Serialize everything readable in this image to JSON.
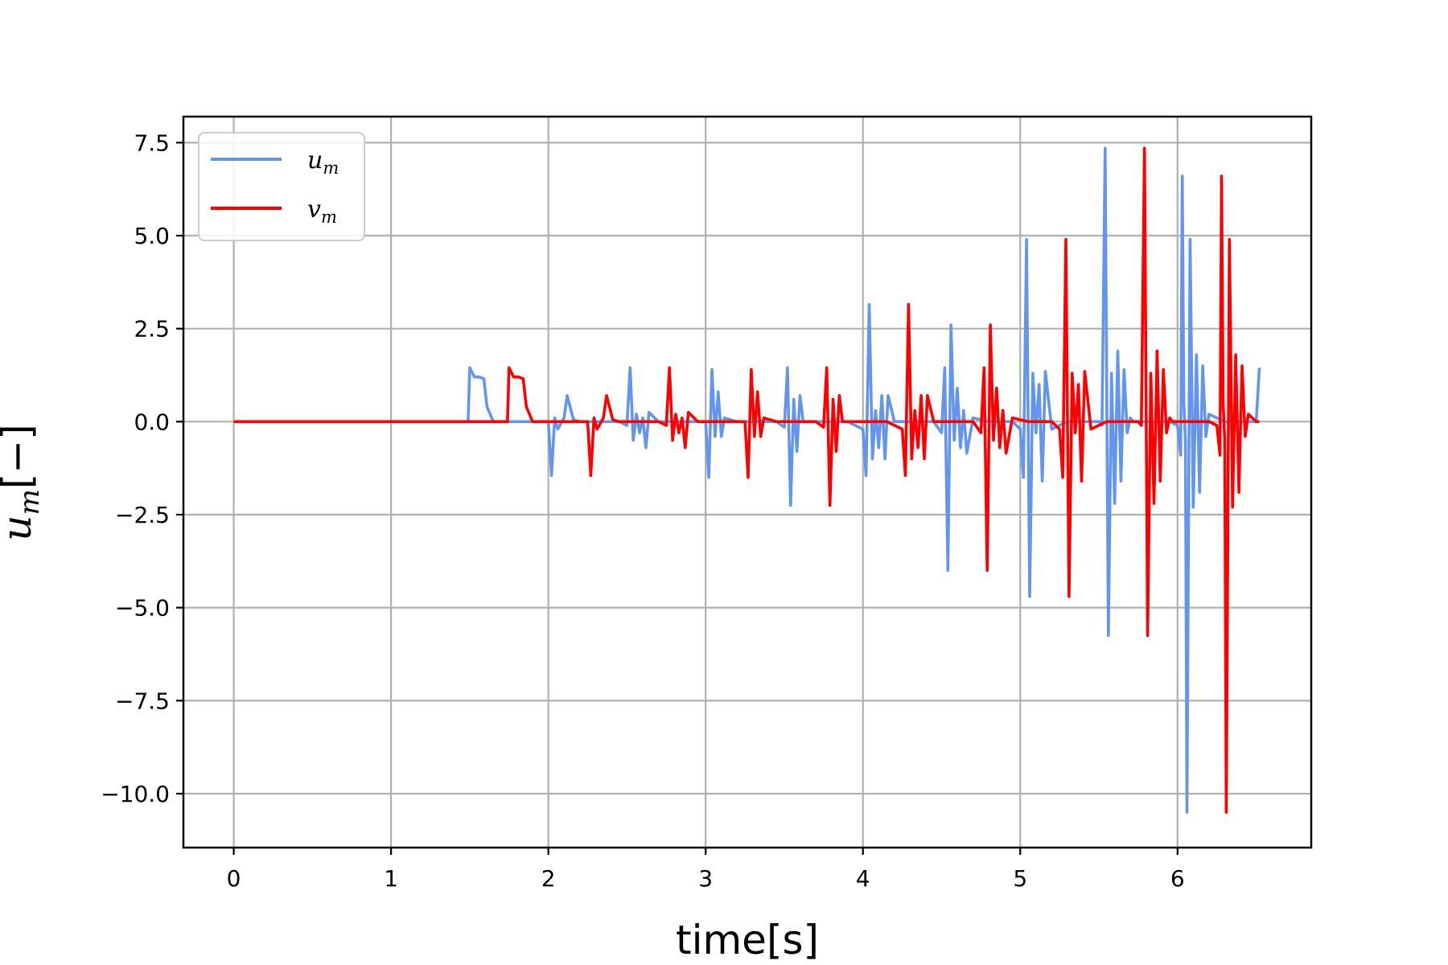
{
  "chart_data": {
    "type": "line",
    "xlabel": "time[s]",
    "ylabel": "u",
    "ylabel_subscript": "m",
    "ylabel_suffix": "[−]",
    "xlim": [
      -0.32,
      6.85
    ],
    "ylim": [
      -11.45,
      8.2
    ],
    "xticks": [
      0,
      1,
      2,
      3,
      4,
      5,
      6
    ],
    "xtick_labels": [
      "0",
      "1",
      "2",
      "3",
      "4",
      "5",
      "6"
    ],
    "yticks": [
      7.5,
      5.0,
      2.5,
      0.0,
      -2.5,
      -5.0,
      -7.5,
      -10.0
    ],
    "ytick_labels": [
      "7.5",
      "5.0",
      "2.5",
      "0.0",
      "−2.5",
      "−5.0",
      "−7.5",
      "−10.0"
    ],
    "grid": true,
    "legend_position": "upper-left",
    "series": [
      {
        "name": "u",
        "name_subscript": "m",
        "color": "#6495ed",
        "x": [
          0,
          1.49,
          1.5,
          1.53,
          1.56,
          1.59,
          1.61,
          1.65,
          1.7,
          1.8,
          2.0,
          2.02,
          2.04,
          2.06,
          2.1,
          2.12,
          2.16,
          2.2,
          2.3,
          2.45,
          2.5,
          2.52,
          2.54,
          2.56,
          2.58,
          2.6,
          2.62,
          2.64,
          2.7,
          2.75,
          2.8,
          2.84,
          2.9,
          2.98,
          3.0,
          3.02,
          3.04,
          3.06,
          3.08,
          3.1,
          3.12,
          3.2,
          3.3,
          3.45,
          3.5,
          3.52,
          3.54,
          3.56,
          3.58,
          3.6,
          3.62,
          3.7,
          3.8,
          3.9,
          4.0,
          4.02,
          4.04,
          4.06,
          4.08,
          4.1,
          4.12,
          4.14,
          4.16,
          4.2,
          4.3,
          4.45,
          4.5,
          4.52,
          4.54,
          4.56,
          4.58,
          4.6,
          4.62,
          4.64,
          4.66,
          4.7,
          4.8,
          4.95,
          5.0,
          5.02,
          5.04,
          5.06,
          5.08,
          5.1,
          5.12,
          5.14,
          5.16,
          5.2,
          5.3,
          5.45,
          5.5,
          5.52,
          5.54,
          5.56,
          5.58,
          5.6,
          5.62,
          5.64,
          5.66,
          5.68,
          5.7,
          5.72,
          5.8,
          5.95,
          6.0,
          6.02,
          6.03,
          6.04,
          6.05,
          6.06,
          6.08,
          6.1,
          6.12,
          6.14,
          6.16,
          6.18,
          6.2,
          6.3,
          6.4,
          6.45,
          6.5,
          6.52
        ],
        "y": [
          0,
          0,
          1.45,
          1.2,
          1.2,
          1.15,
          0.4,
          0,
          0,
          0,
          0,
          -1.45,
          0.1,
          -0.2,
          0.1,
          0.7,
          0.05,
          0,
          0,
          0,
          -0.1,
          1.45,
          -0.5,
          0.2,
          -0.3,
          0.1,
          -0.7,
          0.25,
          0,
          0,
          0,
          0,
          0,
          0,
          0,
          -1.5,
          1.4,
          -0.4,
          0.8,
          -0.4,
          0.1,
          0,
          0,
          0,
          -0.15,
          1.45,
          -2.25,
          0.6,
          -0.8,
          0.7,
          0,
          0,
          0,
          0,
          -0.2,
          -1.45,
          3.15,
          -1.0,
          0.3,
          -0.7,
          0.7,
          -1.0,
          0.7,
          0,
          0,
          0,
          -0.3,
          1.45,
          -4.0,
          2.6,
          -0.5,
          0.9,
          -0.7,
          0.3,
          -0.85,
          0.1,
          0,
          0,
          -0.2,
          -1.5,
          4.9,
          -4.7,
          1.3,
          -0.3,
          1.0,
          -1.6,
          1.35,
          -0.2,
          0,
          0,
          0,
          -0.1,
          7.35,
          -5.75,
          1.3,
          -2.2,
          1.9,
          -1.6,
          1.4,
          -0.3,
          0.1,
          0,
          0,
          0,
          -0.1,
          -0.9,
          6.6,
          0.5,
          -0.5,
          -10.5,
          4.9,
          -2.3,
          1.8,
          -1.9,
          1.5,
          -0.4,
          0.2,
          0,
          0,
          0,
          0,
          1.45
        ],
        "visible_peaks_note": ""
      },
      {
        "name": "v",
        "name_subscript": "m",
        "color": "#ff0000",
        "x": [
          0,
          1.74,
          1.75,
          1.78,
          1.81,
          1.84,
          1.86,
          1.9,
          1.95,
          2.05,
          2.25,
          2.27,
          2.29,
          2.31,
          2.35,
          2.37,
          2.41,
          2.45,
          2.55,
          2.7,
          2.75,
          2.77,
          2.79,
          2.81,
          2.83,
          2.85,
          2.87,
          2.89,
          2.95,
          3.0,
          3.05,
          3.09,
          3.15,
          3.23,
          3.25,
          3.27,
          3.29,
          3.31,
          3.33,
          3.35,
          3.37,
          3.45,
          3.55,
          3.7,
          3.75,
          3.77,
          3.79,
          3.81,
          3.83,
          3.85,
          3.87,
          3.95,
          4.05,
          4.15,
          4.25,
          4.27,
          4.29,
          4.31,
          4.33,
          4.35,
          4.37,
          4.39,
          4.41,
          4.45,
          4.55,
          4.7,
          4.75,
          4.77,
          4.79,
          4.81,
          4.83,
          4.85,
          4.87,
          4.89,
          4.91,
          4.95,
          5.05,
          5.2,
          5.25,
          5.27,
          5.29,
          5.31,
          5.33,
          5.35,
          5.37,
          5.39,
          5.41,
          5.45,
          5.55,
          5.7,
          5.75,
          5.77,
          5.79,
          5.81,
          5.83,
          5.85,
          5.87,
          5.89,
          5.91,
          5.93,
          5.95,
          5.97,
          6.05,
          6.2,
          6.25,
          6.27,
          6.28,
          6.29,
          6.3,
          6.31,
          6.33,
          6.35,
          6.37,
          6.39,
          6.41,
          6.43,
          6.45,
          6.5,
          6.52
        ],
        "y": [
          0,
          0,
          1.45,
          1.2,
          1.2,
          1.15,
          0.4,
          0,
          0,
          0,
          0,
          -1.45,
          0.1,
          -0.2,
          0.1,
          0.7,
          0.05,
          0,
          0,
          0,
          -0.1,
          1.45,
          -0.5,
          0.2,
          -0.3,
          0.1,
          -0.7,
          0.25,
          0,
          0,
          0,
          0,
          0,
          0,
          0,
          -1.5,
          1.4,
          -0.4,
          0.8,
          -0.4,
          0.1,
          0,
          0,
          0,
          -0.15,
          1.45,
          -2.25,
          0.6,
          -0.8,
          0.7,
          0,
          0,
          0,
          0,
          -0.2,
          -1.45,
          3.15,
          -1.0,
          0.3,
          -0.7,
          0.7,
          -1.0,
          0.7,
          0,
          0,
          0,
          -0.3,
          1.45,
          -4.0,
          2.6,
          -0.5,
          0.9,
          -0.7,
          0.3,
          -0.85,
          0.1,
          0,
          0,
          -0.2,
          -1.5,
          4.9,
          -4.7,
          1.3,
          -0.3,
          1.0,
          -1.6,
          1.35,
          -0.2,
          0,
          0,
          0,
          -0.1,
          7.35,
          -5.75,
          1.3,
          -2.2,
          1.9,
          -1.6,
          1.4,
          -0.3,
          0.1,
          0,
          0,
          0,
          -0.1,
          -0.9,
          6.6,
          0.5,
          -0.5,
          -10.5,
          4.9,
          -2.3,
          1.8,
          -1.9,
          1.5,
          -0.4,
          0.2,
          0,
          0
        ]
      }
    ]
  }
}
